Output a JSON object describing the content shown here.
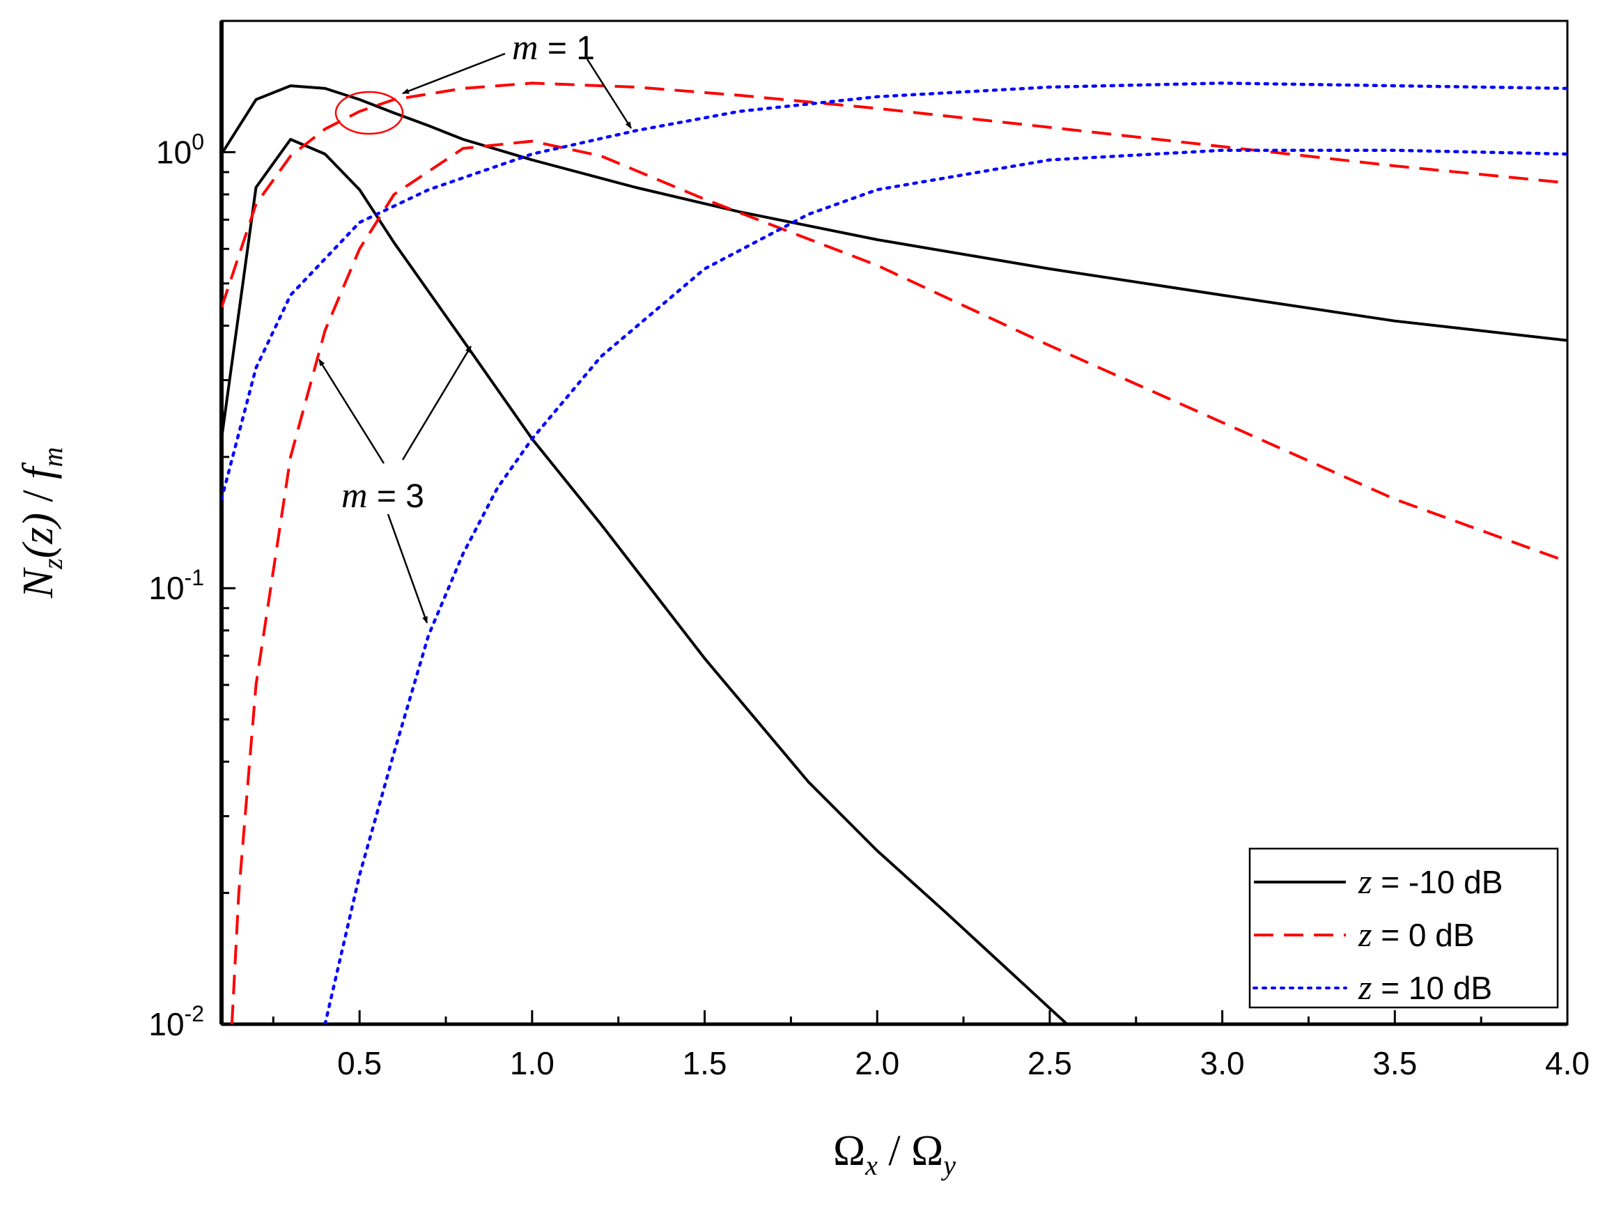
{
  "chart_data": {
    "type": "line",
    "xlabel": {
      "omega": "Ω",
      "sub_x": "x",
      "sep": " / ",
      "sub_y": "y"
    },
    "ylabel": {
      "n": "N",
      "sub_z": "z",
      "arg": "(z)",
      "sep": " / ",
      "f": "f",
      "sub_m": "m"
    },
    "x_range": [
      0.1,
      4.0
    ],
    "y_range": [
      0.01,
      2.0
    ],
    "y_scale": "log",
    "grid": false,
    "legend_placement": "bottom-right",
    "x_ticks": [
      0.5,
      1.0,
      1.5,
      2.0,
      2.5,
      3.0,
      3.5,
      4.0
    ],
    "x_tick_labels": [
      "0.5",
      "1.0",
      "1.5",
      "2.0",
      "2.5",
      "3.0",
      "3.5",
      "4.0"
    ],
    "y_ticks": [
      {
        "value": 1,
        "base": "10",
        "exp": "0"
      },
      {
        "value": 0.1,
        "base": "10",
        "exp": "-1"
      },
      {
        "value": 0.01,
        "base": "10",
        "exp": "-2"
      }
    ],
    "legend": [
      {
        "var": "z",
        "text": " = -10 dB",
        "style": "solid",
        "color": "#000000"
      },
      {
        "var": "z",
        "text": " = 0 dB",
        "style": "dashed",
        "color": "#ff0000"
      },
      {
        "var": "z",
        "text": " = 10 dB",
        "style": "dotted",
        "color": "#0000ff"
      }
    ],
    "annotations": [
      {
        "var": "m",
        "text": " = 1"
      },
      {
        "var": "m",
        "text": " = 3"
      }
    ],
    "series": [
      {
        "legend_index": 0,
        "m": 1,
        "color": "#000000",
        "style": "solid",
        "x": [
          0.1,
          0.2,
          0.3,
          0.4,
          0.5,
          0.6,
          0.7,
          0.8,
          1.0,
          1.3,
          1.6,
          2.0,
          2.5,
          3.0,
          3.5,
          4.0
        ],
        "y": [
          0.99,
          1.32,
          1.42,
          1.4,
          1.32,
          1.23,
          1.15,
          1.07,
          0.96,
          0.83,
          0.73,
          0.63,
          0.54,
          0.47,
          0.41,
          0.37
        ]
      },
      {
        "legend_index": 0,
        "m": 3,
        "color": "#000000",
        "style": "solid",
        "x": [
          0.1,
          0.2,
          0.3,
          0.4,
          0.5,
          0.6,
          0.8,
          1.0,
          1.2,
          1.5,
          1.8,
          2.0,
          2.2,
          2.55
        ],
        "y": [
          0.22,
          0.83,
          1.07,
          0.99,
          0.82,
          0.62,
          0.37,
          0.22,
          0.14,
          0.069,
          0.036,
          0.025,
          0.018,
          0.01
        ]
      },
      {
        "legend_index": 1,
        "m": 1,
        "color": "#ff0000",
        "style": "dashed",
        "x": [
          0.1,
          0.2,
          0.3,
          0.4,
          0.5,
          0.6,
          0.8,
          1.0,
          1.3,
          1.6,
          2.0,
          2.5,
          3.0,
          3.5,
          4.0
        ],
        "y": [
          0.44,
          0.76,
          0.98,
          1.13,
          1.24,
          1.32,
          1.4,
          1.44,
          1.41,
          1.35,
          1.26,
          1.14,
          1.03,
          0.93,
          0.85
        ]
      },
      {
        "legend_index": 1,
        "m": 3,
        "color": "#ff0000",
        "style": "dashed",
        "x": [
          0.13,
          0.15,
          0.2,
          0.3,
          0.4,
          0.5,
          0.6,
          0.8,
          1.0,
          1.2,
          1.5,
          2.0,
          2.5,
          3.0,
          3.5,
          4.0
        ],
        "y": [
          0.01,
          0.02,
          0.06,
          0.2,
          0.39,
          0.6,
          0.8,
          1.02,
          1.06,
          0.98,
          0.78,
          0.55,
          0.36,
          0.24,
          0.16,
          0.115
        ]
      },
      {
        "legend_index": 2,
        "m": 1,
        "color": "#0000ff",
        "style": "dotted",
        "x": [
          0.1,
          0.2,
          0.3,
          0.5,
          0.7,
          1.0,
          1.3,
          1.6,
          2.0,
          2.5,
          3.0,
          3.5,
          4.0
        ],
        "y": [
          0.16,
          0.32,
          0.47,
          0.69,
          0.82,
          0.99,
          1.12,
          1.24,
          1.34,
          1.41,
          1.44,
          1.42,
          1.4
        ]
      },
      {
        "legend_index": 2,
        "m": 3,
        "color": "#0000ff",
        "style": "dotted",
        "x": [
          0.4,
          0.5,
          0.6,
          0.7,
          0.8,
          0.9,
          1.0,
          1.2,
          1.5,
          1.8,
          2.0,
          2.5,
          3.0,
          3.5,
          4.0
        ],
        "y": [
          0.01,
          0.022,
          0.042,
          0.078,
          0.12,
          0.17,
          0.22,
          0.34,
          0.54,
          0.72,
          0.82,
          0.96,
          1.01,
          1.01,
          0.99
        ]
      }
    ]
  }
}
